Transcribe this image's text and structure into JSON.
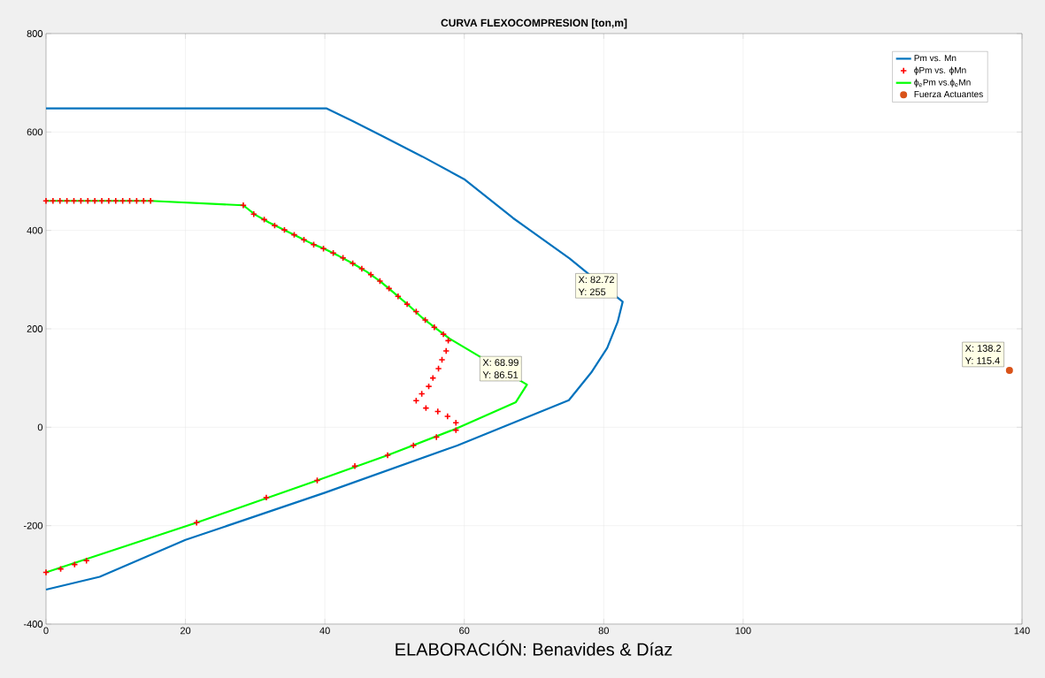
{
  "chart_data": {
    "type": "line",
    "title": "CURVA FLEXOCOMPRESION   [ton,m]",
    "xlim": [
      0,
      140
    ],
    "ylim": [
      -400,
      800
    ],
    "xticks": [
      0,
      20,
      40,
      60,
      80,
      100,
      140
    ],
    "yticks": [
      -400,
      -200,
      0,
      200,
      400,
      600,
      800
    ],
    "grid": true,
    "legend": "top right",
    "series": [
      {
        "name": "Pm vs. Mn",
        "color": "#0072bd",
        "marker": "none",
        "x": [
          0,
          40.2,
          44,
          48.2,
          54,
          60.1,
          67,
          75.1,
          82.72,
          82.0,
          80.5,
          78.2,
          75,
          59,
          40,
          20,
          7.7,
          0
        ],
        "values": [
          648,
          648,
          622,
          592,
          550,
          503,
          425,
          343,
          255,
          214,
          161,
          111,
          55,
          -37,
          -133,
          -229,
          -304,
          -330
        ]
      },
      {
        "name": "ϕPm vs. ϕMn",
        "type": "scatter",
        "color": "#ff0000",
        "marker": "cross",
        "x": [
          0,
          1,
          2,
          3,
          4,
          5,
          6,
          7,
          8,
          9,
          10,
          11,
          12,
          13,
          14,
          15,
          28.3,
          29.8,
          31.3,
          32.8,
          34.2,
          35.6,
          37,
          38.4,
          39.8,
          41.2,
          42.6,
          44,
          45.3,
          46.6,
          47.9,
          49.2,
          50.5,
          51.8,
          53.1,
          54.4,
          55.7,
          57,
          57.7,
          57.4,
          56.8,
          56.3,
          55.5,
          54.9,
          53.9,
          53.1,
          54.5,
          56.2,
          57.6,
          58.8,
          58.8,
          56,
          52.7,
          49,
          44.3,
          38.9,
          31.6,
          21.6,
          5.8,
          4.1,
          2.1,
          0
        ],
        "values": [
          460,
          460,
          460,
          460,
          460,
          460,
          460,
          460,
          460,
          460,
          460,
          460,
          460,
          460,
          460,
          460,
          451,
          433,
          422,
          410,
          401,
          391,
          381,
          371,
          363,
          354,
          344,
          333,
          322,
          310,
          297,
          282,
          266,
          250,
          235,
          218,
          203,
          189,
          176,
          155,
          137,
          119,
          100,
          83,
          68,
          54,
          39,
          32,
          22,
          9,
          -6,
          -20,
          -37,
          -57,
          -79,
          -108,
          -143,
          -194,
          -271,
          -279,
          -288,
          -295
        ]
      },
      {
        "name": "ϕ$_{e}$Pm vs.ϕ$_{e}$Mn",
        "color": "#00ff00",
        "marker": "none",
        "x": [
          0,
          15,
          28.3,
          30,
          32,
          34,
          36,
          38,
          40,
          42,
          44,
          46,
          48,
          50,
          52,
          54,
          56,
          57.9,
          68.99,
          67.4,
          58.8,
          49,
          38.9,
          21.6,
          0
        ],
        "values": [
          460,
          460,
          451,
          432,
          416,
          402,
          388,
          374,
          362,
          348,
          333,
          316,
          296,
          272,
          248,
          222,
          200,
          180,
          86.51,
          51,
          -3,
          -57,
          -108,
          -194,
          -295
        ]
      },
      {
        "name": "Fuerza Actuantes",
        "type": "scatter",
        "color": "#d95319",
        "marker": "circle",
        "x": [
          138.2
        ],
        "values": [
          115.4
        ]
      }
    ],
    "annotations": [
      {
        "text": "X: 82.72",
        "x": 82.72,
        "y": 255
      },
      {
        "text": "Y: 255",
        "x": 82.72,
        "y": 255
      },
      {
        "text": "X: 68.99",
        "x": 68.99,
        "y": 86.51
      },
      {
        "text": "Y: 86.51",
        "x": 68.99,
        "y": 86.51
      },
      {
        "text": "X: 138.2",
        "x": 138.2,
        "y": 115.4
      },
      {
        "text": "Y: 115.4",
        "x": 138.2,
        "y": 115.4
      },
      "ELABORACIÓN: Benavides & Díaz"
    ]
  }
}
